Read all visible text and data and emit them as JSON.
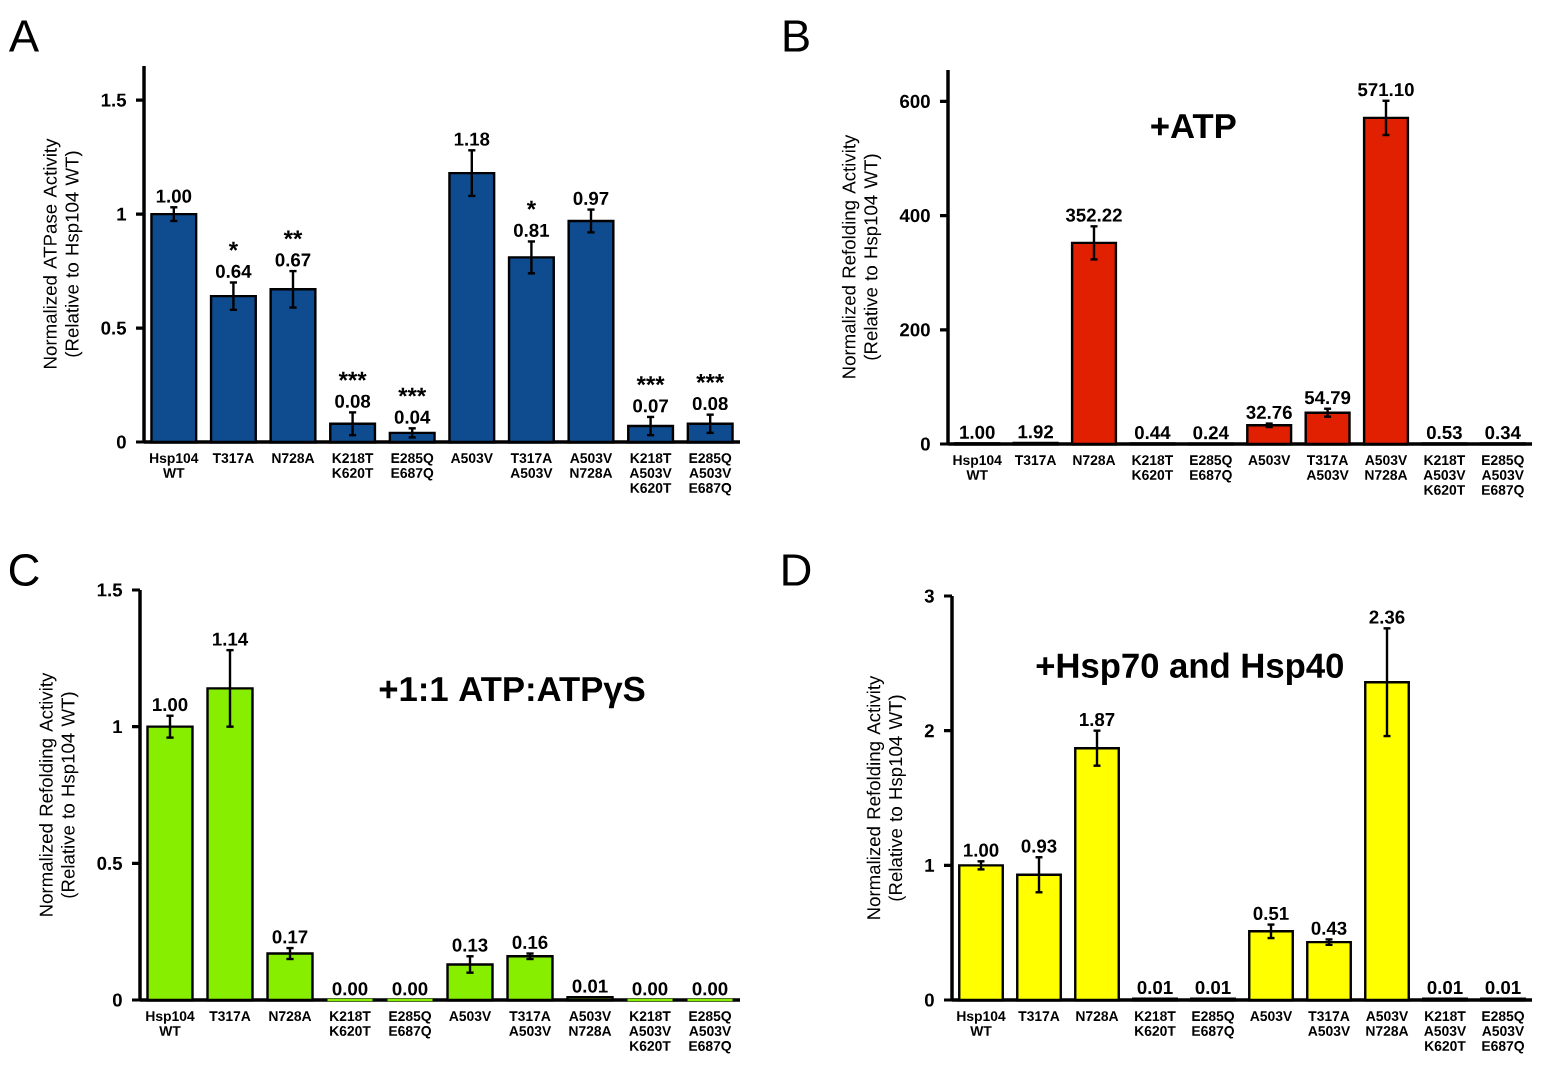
{
  "chart_data": [
    {
      "type": "bar",
      "ylabel": "Normalized ATPase Activity (Relative to Hsp104 WT)",
      "categories": [
        "Hsp104 WT",
        "T317A",
        "N728A",
        "K218T K620T",
        "E285Q E687Q",
        "A503V",
        "T317A A503V",
        "A503V N728A",
        "K218T A503V K620T",
        "E285Q A503V E687Q"
      ],
      "color": "#0f4c8f",
      "ylim": [
        0,
        1.65
      ],
      "yticks": [
        0,
        0.5,
        1,
        1.5
      ],
      "values": [
        1.0,
        0.64,
        0.67,
        0.08,
        0.04,
        1.18,
        0.81,
        0.97,
        0.07,
        0.08
      ],
      "value_labels": [
        "1.00",
        "0.64",
        "0.67",
        "0.08",
        "0.04",
        "1.18",
        "0.81",
        "0.97",
        "0.07",
        "0.08"
      ],
      "errors": [
        0.03,
        0.06,
        0.08,
        0.05,
        0.02,
        0.1,
        0.07,
        0.05,
        0.04,
        0.04
      ],
      "annotations": [
        "A",
        "*",
        "**",
        "***",
        "***",
        "*",
        "***",
        "***"
      ]
    },
    {
      "type": "bar",
      "title": "+ATP",
      "ylabel": "Normalized Refolding Activity (Relative to Hsp104 WT)",
      "categories": [
        "Hsp104 WT",
        "T317A",
        "N728A",
        "K218T K620T",
        "E285Q E687Q",
        "A503V",
        "T317A A503V",
        "A503V N728A",
        "K218T A503V K620T",
        "E285Q A503V E687Q"
      ],
      "color": "#e02000",
      "ylim": [
        0,
        655
      ],
      "yticks": [
        0,
        200,
        400,
        600
      ],
      "values": [
        1.0,
        1.92,
        352.22,
        0.44,
        0.24,
        32.76,
        54.79,
        571.1,
        0.53,
        0.34
      ],
      "value_labels": [
        "1.00",
        "1.92",
        "352.22",
        "0.44",
        "0.24",
        "32.76",
        "54.79",
        "571.10",
        "0.53",
        "0.34"
      ],
      "errors": [
        null,
        null,
        29,
        null,
        null,
        3,
        7,
        30,
        null,
        null
      ],
      "annotations": [
        "B"
      ]
    },
    {
      "type": "bar",
      "title": "+1:1 ATP:ATPγS",
      "ylabel": "Normalized Refolding Activity (Relative to Hsp104 WT)",
      "categories": [
        "Hsp104 WT",
        "T317A",
        "N728A",
        "K218T K620T",
        "E285Q E687Q",
        "A503V",
        "T317A A503V",
        "A503V N728A",
        "K218T A503V K620T",
        "E285Q A503V E687Q"
      ],
      "color": "#88ee00",
      "ylim": [
        0,
        1.5
      ],
      "yticks": [
        0,
        0.5,
        1,
        1.5
      ],
      "values": [
        1.0,
        1.14,
        0.17,
        0.0,
        0.0,
        0.13,
        0.16,
        0.01,
        0.0,
        0.0
      ],
      "value_labels": [
        "1.00",
        "1.14",
        "0.17",
        "0.00",
        "0.00",
        "0.13",
        "0.16",
        "0.01",
        "0.00",
        "0.00"
      ],
      "errors": [
        0.04,
        0.14,
        0.02,
        null,
        null,
        0.03,
        0.01,
        null,
        null,
        null
      ],
      "annotations": [
        "C"
      ]
    },
    {
      "type": "bar",
      "title": "+Hsp70 and Hsp40",
      "ylabel": "Normalized Refolding Activity (Relative to Hsp104 WT)",
      "categories": [
        "Hsp104 WT",
        "T317A",
        "N728A",
        "K218T K620T",
        "E285Q E687Q",
        "A503V",
        "T317A A503V",
        "A503V N728A",
        "K218T A503V K620T",
        "E285Q A503V E687Q"
      ],
      "color": "#ffff00",
      "ylim": [
        0,
        3
      ],
      "yticks": [
        0,
        1,
        2,
        3
      ],
      "values": [
        1.0,
        0.93,
        1.87,
        0.01,
        0.01,
        0.51,
        0.43,
        2.36,
        0.01,
        0.01
      ],
      "value_labels": [
        "1.00",
        "0.93",
        "1.87",
        "0.01",
        "0.01",
        "0.51",
        "0.43",
        "2.36",
        "0.01",
        "0.01"
      ],
      "errors": [
        0.03,
        0.13,
        0.13,
        null,
        null,
        0.05,
        0.02,
        0.4,
        null,
        null
      ],
      "annotations": [
        "D"
      ]
    }
  ]
}
